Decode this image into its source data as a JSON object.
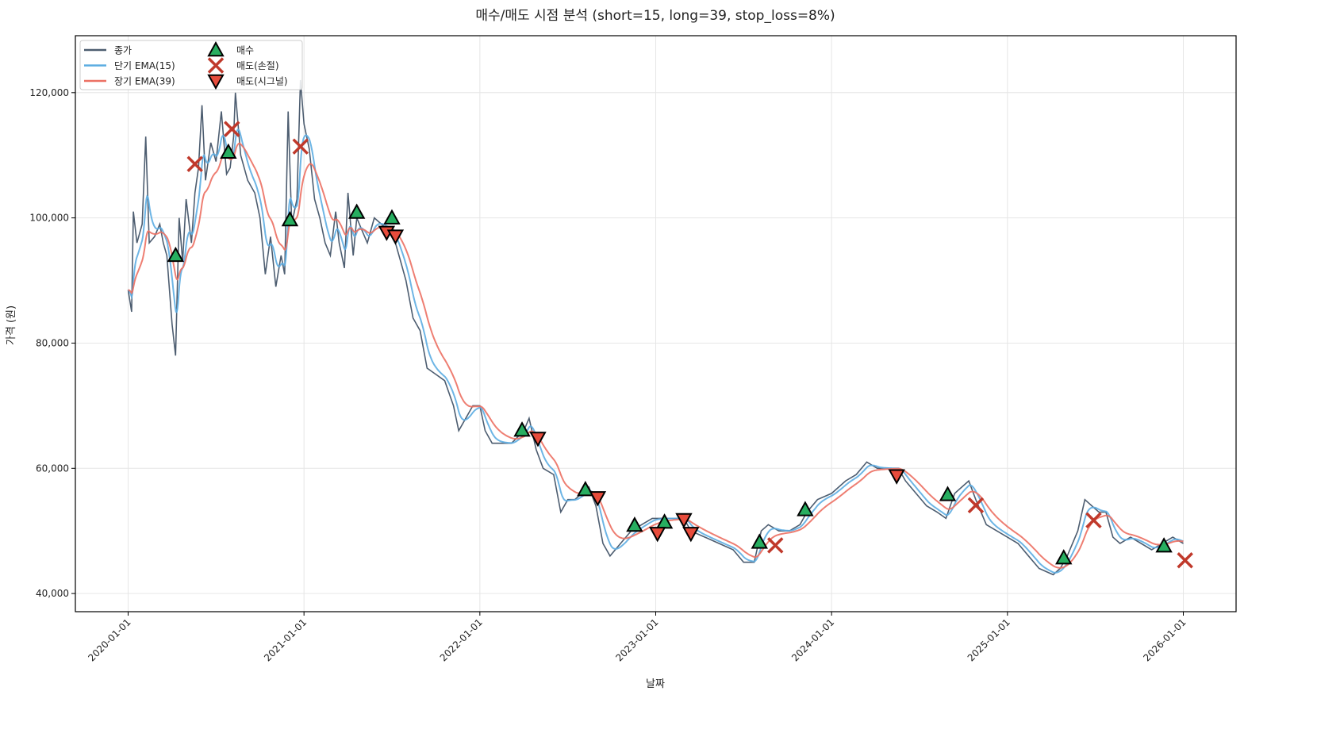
{
  "chart_data": {
    "type": "line",
    "title": "매수/매도 시점 분석 (short=15, long=39, stop_loss=8%)",
    "xlabel": "날짜",
    "ylabel": "가격 (원)",
    "x_unit": "fractional year",
    "xlim": [
      2019.7,
      2026.3
    ],
    "ylim": [
      37100,
      129100
    ],
    "grid": true,
    "legend_placement": "top-left",
    "x_ticks": [
      {
        "value": 2020,
        "label": "2020-01-01"
      },
      {
        "value": 2021,
        "label": "2021-01-01"
      },
      {
        "value": 2022,
        "label": "2022-01-01"
      },
      {
        "value": 2023,
        "label": "2023-01-01"
      },
      {
        "value": 2024,
        "label": "2024-01-01"
      },
      {
        "value": 2025,
        "label": "2025-01-01"
      },
      {
        "value": 2026,
        "label": "2026-01-01"
      }
    ],
    "y_ticks": [
      {
        "value": 40000,
        "label": "40,000"
      },
      {
        "value": 60000,
        "label": "60,000"
      },
      {
        "value": 80000,
        "label": "80,000"
      },
      {
        "value": 100000,
        "label": "100,000"
      },
      {
        "value": 120000,
        "label": "120,000"
      }
    ],
    "series": [
      {
        "name": "종가",
        "color": "#4d5d70",
        "kind": "close",
        "points": [
          [
            2020.0,
            88500
          ],
          [
            2020.02,
            85000
          ],
          [
            2020.03,
            101000
          ],
          [
            2020.05,
            96000
          ],
          [
            2020.08,
            99000
          ],
          [
            2020.1,
            113000
          ],
          [
            2020.12,
            96000
          ],
          [
            2020.15,
            97000
          ],
          [
            2020.18,
            99000
          ],
          [
            2020.2,
            96000
          ],
          [
            2020.22,
            94000
          ],
          [
            2020.25,
            83000
          ],
          [
            2020.27,
            78000
          ],
          [
            2020.29,
            100000
          ],
          [
            2020.31,
            93000
          ],
          [
            2020.33,
            103000
          ],
          [
            2020.36,
            96000
          ],
          [
            2020.38,
            104000
          ],
          [
            2020.4,
            108000
          ],
          [
            2020.42,
            118000
          ],
          [
            2020.44,
            106000
          ],
          [
            2020.47,
            112000
          ],
          [
            2020.5,
            109000
          ],
          [
            2020.53,
            117000
          ],
          [
            2020.56,
            107000
          ],
          [
            2020.58,
            108000
          ],
          [
            2020.6,
            113000
          ],
          [
            2020.61,
            120000
          ],
          [
            2020.64,
            110000
          ],
          [
            2020.68,
            106000
          ],
          [
            2020.72,
            104000
          ],
          [
            2020.75,
            100000
          ],
          [
            2020.78,
            91000
          ],
          [
            2020.81,
            97000
          ],
          [
            2020.84,
            89000
          ],
          [
            2020.87,
            94000
          ],
          [
            2020.89,
            91000
          ],
          [
            2020.91,
            117000
          ],
          [
            2020.93,
            99000
          ],
          [
            2020.96,
            103000
          ],
          [
            2020.98,
            122000
          ],
          [
            2021.0,
            115000
          ],
          [
            2021.03,
            111000
          ],
          [
            2021.06,
            103000
          ],
          [
            2021.09,
            100000
          ],
          [
            2021.12,
            96000
          ],
          [
            2021.15,
            94000
          ],
          [
            2021.18,
            101000
          ],
          [
            2021.2,
            96000
          ],
          [
            2021.23,
            92000
          ],
          [
            2021.25,
            104000
          ],
          [
            2021.28,
            94000
          ],
          [
            2021.3,
            100000
          ],
          [
            2021.33,
            98000
          ],
          [
            2021.36,
            96000
          ],
          [
            2021.4,
            100000
          ],
          [
            2021.44,
            99000
          ],
          [
            2021.48,
            98000
          ],
          [
            2021.52,
            96000
          ],
          [
            2021.55,
            93000
          ],
          [
            2021.58,
            90000
          ],
          [
            2021.62,
            84000
          ],
          [
            2021.66,
            82000
          ],
          [
            2021.7,
            76000
          ],
          [
            2021.75,
            75000
          ],
          [
            2021.8,
            74000
          ],
          [
            2021.85,
            70000
          ],
          [
            2021.88,
            66000
          ],
          [
            2021.92,
            68000
          ],
          [
            2021.96,
            70000
          ],
          [
            2022.0,
            70000
          ],
          [
            2022.03,
            66000
          ],
          [
            2022.07,
            64000
          ],
          [
            2022.12,
            64000
          ],
          [
            2022.18,
            64000
          ],
          [
            2022.25,
            66000
          ],
          [
            2022.28,
            68000
          ],
          [
            2022.32,
            63000
          ],
          [
            2022.36,
            60000
          ],
          [
            2022.42,
            59000
          ],
          [
            2022.46,
            53000
          ],
          [
            2022.5,
            55000
          ],
          [
            2022.54,
            55000
          ],
          [
            2022.58,
            56000
          ],
          [
            2022.62,
            57000
          ],
          [
            2022.66,
            54000
          ],
          [
            2022.7,
            48000
          ],
          [
            2022.74,
            46000
          ],
          [
            2022.8,
            48000
          ],
          [
            2022.86,
            50000
          ],
          [
            2022.92,
            51000
          ],
          [
            2022.98,
            52000
          ],
          [
            2023.04,
            52000
          ],
          [
            2023.1,
            52000
          ],
          [
            2023.16,
            52000
          ],
          [
            2023.2,
            50000
          ],
          [
            2023.28,
            49000
          ],
          [
            2023.36,
            48000
          ],
          [
            2023.44,
            47000
          ],
          [
            2023.5,
            45000
          ],
          [
            2023.56,
            45000
          ],
          [
            2023.6,
            50000
          ],
          [
            2023.64,
            51000
          ],
          [
            2023.7,
            50000
          ],
          [
            2023.76,
            50000
          ],
          [
            2023.82,
            51000
          ],
          [
            2023.86,
            53000
          ],
          [
            2023.92,
            55000
          ],
          [
            2024.0,
            56000
          ],
          [
            2024.08,
            58000
          ],
          [
            2024.14,
            59000
          ],
          [
            2024.2,
            61000
          ],
          [
            2024.26,
            60000
          ],
          [
            2024.32,
            60000
          ],
          [
            2024.38,
            60000
          ],
          [
            2024.42,
            58000
          ],
          [
            2024.48,
            56000
          ],
          [
            2024.54,
            54000
          ],
          [
            2024.6,
            53000
          ],
          [
            2024.65,
            52000
          ],
          [
            2024.7,
            56000
          ],
          [
            2024.74,
            57000
          ],
          [
            2024.78,
            58000
          ],
          [
            2024.82,
            55000
          ],
          [
            2024.88,
            51000
          ],
          [
            2024.94,
            50000
          ],
          [
            2025.0,
            49000
          ],
          [
            2025.06,
            48000
          ],
          [
            2025.12,
            46000
          ],
          [
            2025.18,
            44000
          ],
          [
            2025.26,
            43000
          ],
          [
            2025.3,
            44000
          ],
          [
            2025.34,
            46000
          ],
          [
            2025.4,
            50000
          ],
          [
            2025.44,
            55000
          ],
          [
            2025.48,
            54000
          ],
          [
            2025.52,
            53000
          ],
          [
            2025.56,
            53000
          ],
          [
            2025.6,
            49000
          ],
          [
            2025.64,
            48000
          ],
          [
            2025.7,
            49000
          ],
          [
            2025.76,
            48000
          ],
          [
            2025.82,
            47000
          ],
          [
            2025.88,
            48000
          ],
          [
            2025.94,
            49000
          ],
          [
            2026.0,
            48000
          ]
        ]
      },
      {
        "name": "단기 EMA(15)",
        "color": "#5dade2",
        "kind": "ema",
        "span": 15
      },
      {
        "name": "장기 EMA(39)",
        "color": "#ec7063",
        "kind": "ema",
        "span": 39
      }
    ],
    "markers": [
      {
        "name": "매수",
        "shape": "triangle-up",
        "color": "#27ae60",
        "points": [
          [
            2020.27,
            94000
          ],
          [
            2020.57,
            110500
          ],
          [
            2020.92,
            99700
          ],
          [
            2021.3,
            100900
          ],
          [
            2021.5,
            100000
          ],
          [
            2022.24,
            66100
          ],
          [
            2022.6,
            56600
          ],
          [
            2022.88,
            50900
          ],
          [
            2023.05,
            51400
          ],
          [
            2023.59,
            48200
          ],
          [
            2023.85,
            53400
          ],
          [
            2024.66,
            55800
          ],
          [
            2025.32,
            45700
          ],
          [
            2025.89,
            47600
          ]
        ]
      },
      {
        "name": "매도(손절)",
        "shape": "x",
        "color": "#c0392b",
        "points": [
          [
            2020.38,
            108600
          ],
          [
            2020.59,
            114200
          ],
          [
            2020.98,
            111400
          ],
          [
            2023.68,
            47700
          ],
          [
            2024.82,
            54100
          ],
          [
            2025.49,
            51700
          ],
          [
            2026.01,
            45300
          ]
        ]
      },
      {
        "name": "매도(시그널)",
        "shape": "triangle-down",
        "color": "#e74c3c",
        "points": [
          [
            2021.47,
            97700
          ],
          [
            2021.52,
            97100
          ],
          [
            2022.33,
            64800
          ],
          [
            2022.67,
            55300
          ],
          [
            2023.01,
            49600
          ],
          [
            2023.16,
            51800
          ],
          [
            2023.2,
            49600
          ],
          [
            2024.37,
            58800
          ]
        ]
      }
    ]
  }
}
